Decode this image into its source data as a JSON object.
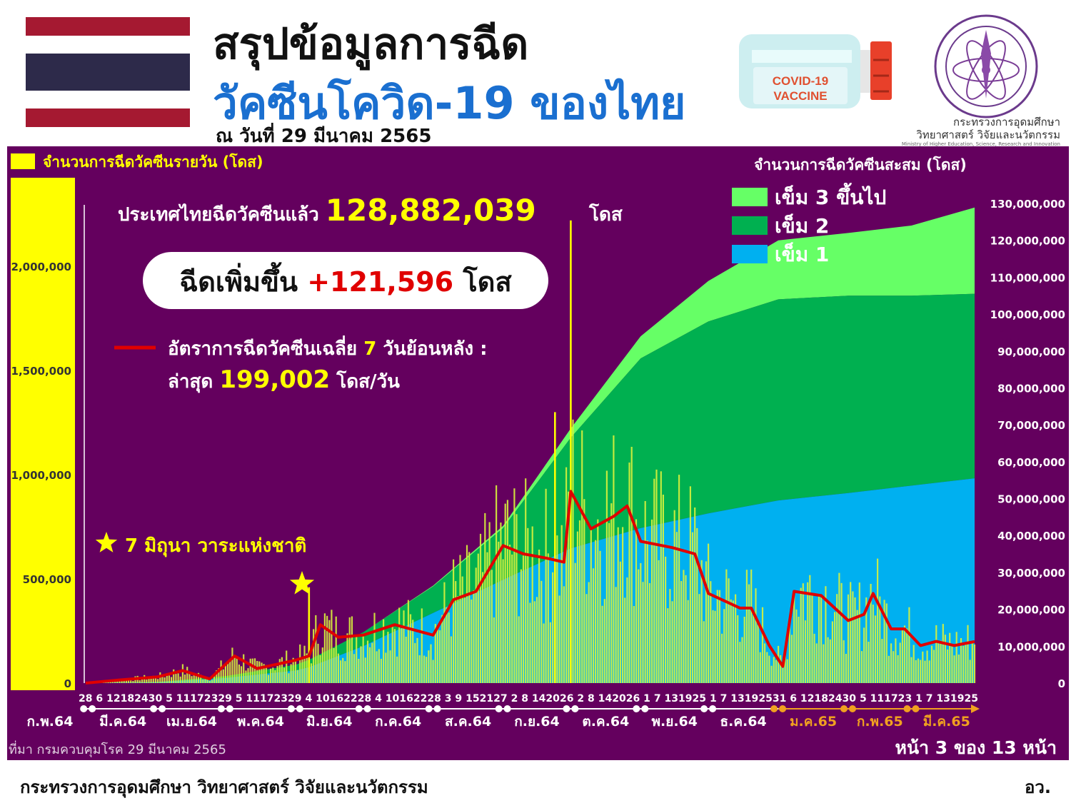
{
  "header": {
    "title_line1": "สรุปข้อมูลการฉีด",
    "title_line2": "วัคซีนโควิด-19 ของไทย",
    "date": "ณ วันที่ 29 มีนาคม 2565",
    "vaccine_label_1": "COVID-19",
    "vaccine_label_2": "VACCINE",
    "ministry_name_th_1": "กระทรวงการอุดมศึกษา",
    "ministry_name_th_2": "วิทยาศาสตร์ วิจัยและนวัตกรรม",
    "ministry_name_en": "Ministry of Higher Education, Science, Research and Innovation"
  },
  "colors": {
    "panel": "#64005e",
    "daily_bar": "#ffff00",
    "dose1": "#00b0f0",
    "dose2": "#00b050",
    "dose3": "#66ff66",
    "moving_avg": "#e00000",
    "flag_red": "#a51931",
    "flag_blue": "#2d2a4a"
  },
  "summary": {
    "total_prefix": "ประเทศไทยฉีดวัคซีนแล้ว",
    "total_value": "128,882,039",
    "total_unit": "โดส",
    "increase_prefix": "ฉีดเพิ่มขึ้น",
    "increase_value": "+121,596",
    "increase_unit": "โดส",
    "avg_label": "อัตราการฉีดวัคซีนเฉลี่ย",
    "avg_days": "7",
    "avg_suffix": "วันย้อนหลัง :",
    "latest_label": "ล่าสุด",
    "latest_value": "199,002",
    "latest_unit": "โดส/วัน",
    "annotation": "7 มิถุนา วาระแห่งชาติ"
  },
  "chart_data": {
    "type": "bar",
    "left_axis_title": "จำนวนการฉีดวัคซีนรายวัน (โดส)",
    "right_axis_title": "จำนวนการฉีดวัคซีนสะสม (โดส)",
    "left_ylim": [
      0,
      2100000
    ],
    "right_ylim": [
      0,
      130000000
    ],
    "left_ticks": [
      "0",
      "500,000",
      "1,000,000",
      "1,500,000",
      "2,000,000"
    ],
    "left_tick_values": [
      0,
      500000,
      1000000,
      1500000,
      2000000
    ],
    "right_ticks": [
      "0",
      "10,000,000",
      "20,000,000",
      "30,000,000",
      "40,000,000",
      "50,000,000",
      "60,000,000",
      "70,000,000",
      "80,000,000",
      "90,000,000",
      "100,000,000",
      "110,000,000",
      "120,000,000",
      "130,000,000"
    ],
    "right_tick_values": [
      0,
      10000000,
      20000000,
      30000000,
      40000000,
      50000000,
      60000000,
      70000000,
      80000000,
      90000000,
      100000000,
      110000000,
      120000000,
      130000000
    ],
    "legend": [
      "เข็ม 3 ขึ้นไป",
      "เข็ม 2",
      "เข็ม 1"
    ],
    "legend_placement": "top-right",
    "x_days_label": "28 6 12182430 5 11172329 5 11172329 4 10162228 4 10162228 3 9 152127 2 8 142026 2 8 142026 1 7 131925 1 7 13192531 6 12182430 5 111723 1 7 131925",
    "months": [
      {
        "label": "ก.พ.64",
        "highlight": false
      },
      {
        "label": "มี.ค.64",
        "highlight": false
      },
      {
        "label": "เม.ย.64",
        "highlight": false
      },
      {
        "label": "พ.ค.64",
        "highlight": false
      },
      {
        "label": "มิ.ย.64",
        "highlight": false
      },
      {
        "label": "ก.ค.64",
        "highlight": false
      },
      {
        "label": "ส.ค.64",
        "highlight": false
      },
      {
        "label": "ก.ย.64",
        "highlight": false
      },
      {
        "label": "ต.ค.64",
        "highlight": false
      },
      {
        "label": "พ.ย.64",
        "highlight": false
      },
      {
        "label": "ธ.ค.64",
        "highlight": false
      },
      {
        "label": "ม.ค.65",
        "highlight": true
      },
      {
        "label": "ก.พ.65",
        "highlight": true
      },
      {
        "label": "มี.ค.65",
        "highlight": true
      }
    ],
    "cumulative_dates": [
      "2021-02-28",
      "2021-04-01",
      "2021-05-01",
      "2021-06-01",
      "2021-06-07",
      "2021-07-01",
      "2021-08-01",
      "2021-09-01",
      "2021-10-01",
      "2021-11-01",
      "2021-12-01",
      "2022-01-01",
      "2022-02-01",
      "2022-03-01",
      "2022-03-29"
    ],
    "dose1_cumulative": [
      0,
      300000,
      1400000,
      3400000,
      4300000,
      10000000,
      19000000,
      28000000,
      36500000,
      42000000,
      46000000,
      49500000,
      51500000,
      53500000,
      55500000
    ],
    "dose2_cumulative": [
      0,
      0,
      500000,
      1600000,
      2000000,
      3800000,
      7200000,
      14000000,
      30000000,
      46000000,
      52000000,
      54500000,
      53500000,
      51500000,
      50000000
    ],
    "dose3_cumulative": [
      0,
      0,
      0,
      0,
      0,
      0,
      200000,
      600000,
      2500000,
      6000000,
      11000000,
      16000000,
      17000000,
      19000000,
      23382039
    ],
    "daily_peaks": [
      {
        "date": "2021-09-24",
        "value": 1300000
      },
      {
        "date": "2021-10-01",
        "value": 2220000
      },
      {
        "date": "2021-06-07",
        "value": 460000
      }
    ],
    "moving_avg_points": [
      {
        "date": "2021-02-28",
        "value": 0
      },
      {
        "date": "2021-03-15",
        "value": 15000
      },
      {
        "date": "2021-04-01",
        "value": 30000
      },
      {
        "date": "2021-04-12",
        "value": 60000
      },
      {
        "date": "2021-04-24",
        "value": 20000
      },
      {
        "date": "2021-05-01",
        "value": 90000
      },
      {
        "date": "2021-05-05",
        "value": 130000
      },
      {
        "date": "2021-05-15",
        "value": 70000
      },
      {
        "date": "2021-06-01",
        "value": 110000
      },
      {
        "date": "2021-06-07",
        "value": 130000
      },
      {
        "date": "2021-06-12",
        "value": 280000
      },
      {
        "date": "2021-06-20",
        "value": 220000
      },
      {
        "date": "2021-07-01",
        "value": 230000
      },
      {
        "date": "2021-07-15",
        "value": 280000
      },
      {
        "date": "2021-08-01",
        "value": 230000
      },
      {
        "date": "2021-08-10",
        "value": 400000
      },
      {
        "date": "2021-08-20",
        "value": 440000
      },
      {
        "date": "2021-09-01",
        "value": 660000
      },
      {
        "date": "2021-09-10",
        "value": 620000
      },
      {
        "date": "2021-09-20",
        "value": 600000
      },
      {
        "date": "2021-09-28",
        "value": 580000
      },
      {
        "date": "2021-10-01",
        "value": 920000
      },
      {
        "date": "2021-10-10",
        "value": 740000
      },
      {
        "date": "2021-10-20",
        "value": 800000
      },
      {
        "date": "2021-10-26",
        "value": 850000
      },
      {
        "date": "2021-11-01",
        "value": 680000
      },
      {
        "date": "2021-11-15",
        "value": 650000
      },
      {
        "date": "2021-11-25",
        "value": 620000
      },
      {
        "date": "2021-12-01",
        "value": 430000
      },
      {
        "date": "2021-12-15",
        "value": 360000
      },
      {
        "date": "2021-12-20",
        "value": 360000
      },
      {
        "date": "2021-12-28",
        "value": 180000
      },
      {
        "date": "2022-01-03",
        "value": 80000
      },
      {
        "date": "2022-01-08",
        "value": 440000
      },
      {
        "date": "2022-01-20",
        "value": 420000
      },
      {
        "date": "2022-02-01",
        "value": 300000
      },
      {
        "date": "2022-02-08",
        "value": 330000
      },
      {
        "date": "2022-02-12",
        "value": 430000
      },
      {
        "date": "2022-02-20",
        "value": 260000
      },
      {
        "date": "2022-02-26",
        "value": 260000
      },
      {
        "date": "2022-03-05",
        "value": 180000
      },
      {
        "date": "2022-03-12",
        "value": 200000
      },
      {
        "date": "2022-03-20",
        "value": 180000
      },
      {
        "date": "2022-03-29",
        "value": 199002
      }
    ]
  },
  "source": "ที่มา กรมควบคุมโรค 29 มีนาคม 2565",
  "page": "หน้า 3 ของ 13 หน้า",
  "footer": {
    "org": "กระทรวงการอุดมศึกษา วิทยาศาสตร์ วิจัยและนวัตกรรม",
    "abbr": "อว."
  }
}
